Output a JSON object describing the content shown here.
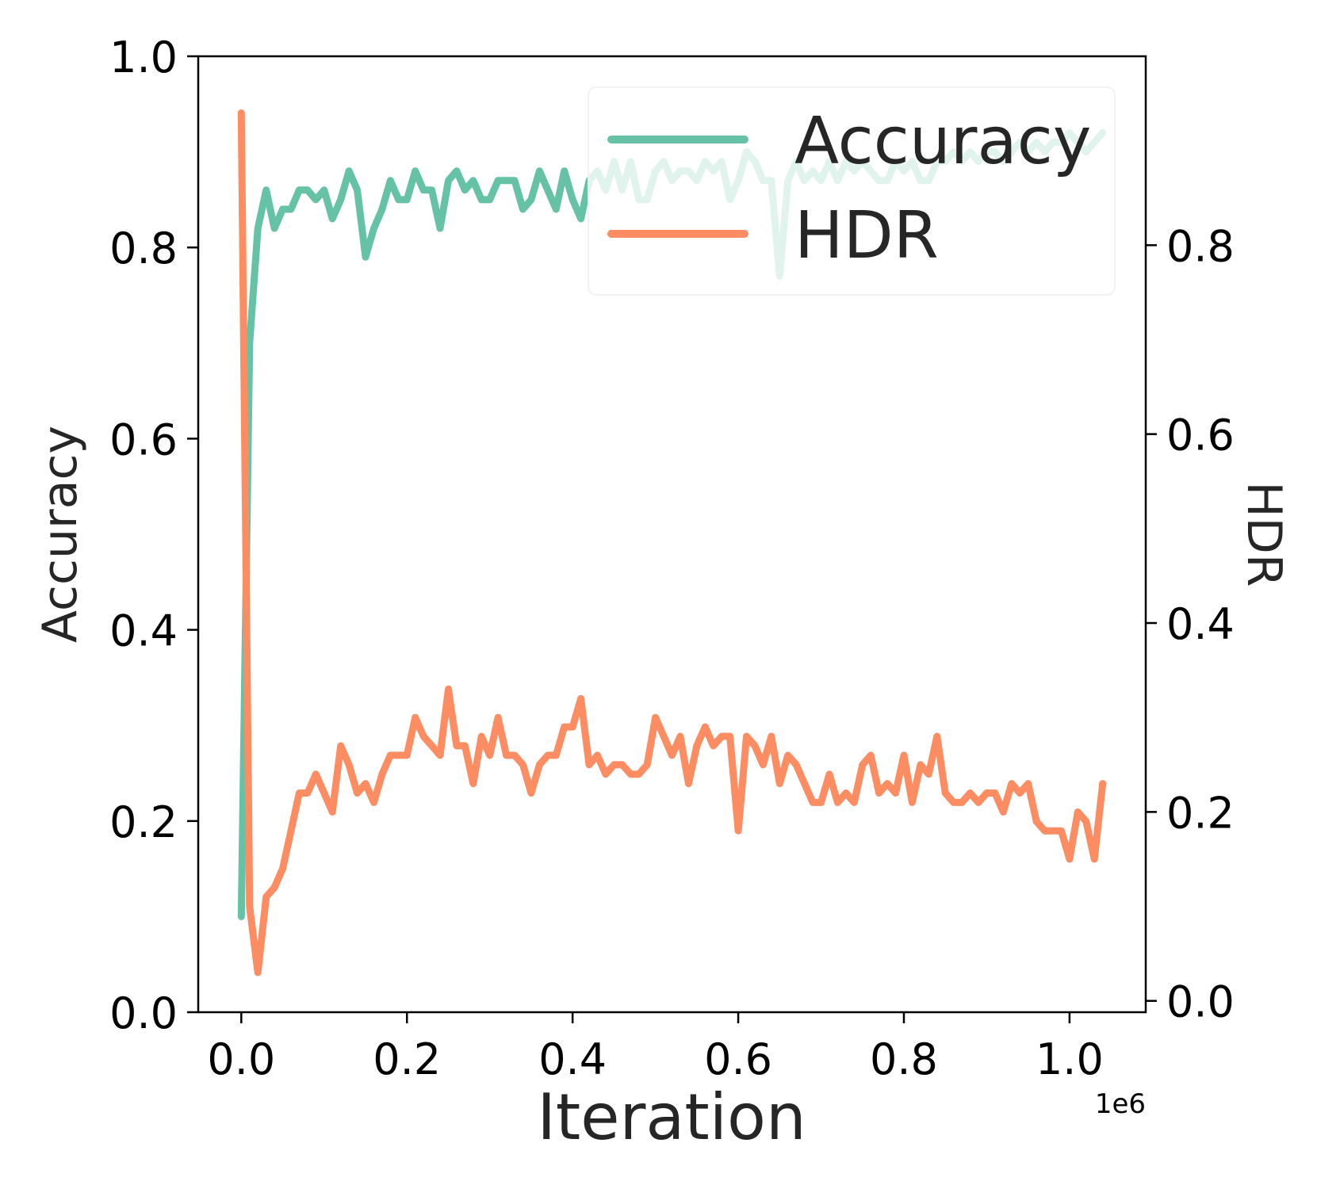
{
  "chart_data": {
    "type": "line",
    "xlabel": "Iteration",
    "ylabel_left": "Accuracy",
    "ylabel_right": "HDR",
    "x_offset_label": "1e6",
    "xlim": [
      -0.052,
      1.092
    ],
    "ylim_left": [
      0.0,
      1.0
    ],
    "ylim_right": [
      -0.012,
      1.0
    ],
    "x_ticks": [
      "0.0",
      "0.2",
      "0.4",
      "0.6",
      "0.8",
      "1.0"
    ],
    "y_left_ticks": [
      "0.0",
      "0.2",
      "0.4",
      "0.6",
      "0.8",
      "1.0"
    ],
    "y_right_ticks": [
      "0.0",
      "0.2",
      "0.4",
      "0.6",
      "0.8"
    ],
    "legend_position": "top-right",
    "grid": false,
    "colors": {
      "accuracy": "#66c2a5",
      "hdr": "#fc8d62",
      "axes": "#000000",
      "text": "#262626"
    },
    "series": [
      {
        "name": "Accuracy",
        "axis": "left",
        "x": [
          0.0,
          0.01,
          0.02,
          0.03,
          0.04,
          0.05,
          0.06,
          0.07,
          0.08,
          0.09,
          0.1,
          0.11,
          0.12,
          0.13,
          0.14,
          0.15,
          0.16,
          0.17,
          0.18,
          0.19,
          0.2,
          0.21,
          0.22,
          0.23,
          0.24,
          0.25,
          0.26,
          0.27,
          0.28,
          0.29,
          0.3,
          0.31,
          0.32,
          0.33,
          0.34,
          0.35,
          0.36,
          0.37,
          0.38,
          0.39,
          0.4,
          0.41,
          0.42,
          0.43,
          0.44,
          0.45,
          0.46,
          0.47,
          0.48,
          0.49,
          0.5,
          0.51,
          0.52,
          0.53,
          0.54,
          0.55,
          0.56,
          0.57,
          0.58,
          0.59,
          0.6,
          0.61,
          0.62,
          0.63,
          0.64,
          0.65,
          0.66,
          0.67,
          0.68,
          0.69,
          0.7,
          0.71,
          0.72,
          0.73,
          0.74,
          0.75,
          0.76,
          0.77,
          0.78,
          0.79,
          0.8,
          0.81,
          0.82,
          0.83,
          0.84,
          0.85,
          0.86,
          0.87,
          0.88,
          0.89,
          0.9,
          0.91,
          0.92,
          0.93,
          0.94,
          0.95,
          0.96,
          0.97,
          0.98,
          0.99,
          1.0,
          1.01,
          1.02,
          1.03,
          1.04
        ],
        "values": [
          0.1,
          0.7,
          0.82,
          0.86,
          0.82,
          0.84,
          0.84,
          0.86,
          0.86,
          0.85,
          0.86,
          0.83,
          0.85,
          0.88,
          0.86,
          0.79,
          0.82,
          0.84,
          0.87,
          0.85,
          0.85,
          0.88,
          0.86,
          0.86,
          0.82,
          0.87,
          0.88,
          0.86,
          0.87,
          0.85,
          0.85,
          0.87,
          0.87,
          0.87,
          0.84,
          0.85,
          0.88,
          0.86,
          0.84,
          0.88,
          0.85,
          0.83,
          0.87,
          0.88,
          0.86,
          0.89,
          0.86,
          0.89,
          0.85,
          0.85,
          0.88,
          0.89,
          0.87,
          0.88,
          0.88,
          0.87,
          0.89,
          0.88,
          0.89,
          0.85,
          0.87,
          0.9,
          0.89,
          0.87,
          0.87,
          0.77,
          0.87,
          0.89,
          0.87,
          0.88,
          0.87,
          0.89,
          0.87,
          0.89,
          0.88,
          0.89,
          0.88,
          0.87,
          0.87,
          0.89,
          0.88,
          0.89,
          0.87,
          0.87,
          0.89,
          0.89,
          0.9,
          0.89,
          0.9,
          0.89,
          0.9,
          0.9,
          0.89,
          0.9,
          0.91,
          0.9,
          0.91,
          0.9,
          0.91,
          0.91,
          0.92,
          0.91,
          0.9,
          0.91,
          0.92
        ]
      },
      {
        "name": "HDR",
        "axis": "right",
        "x": [
          0.0,
          0.01,
          0.02,
          0.03,
          0.04,
          0.05,
          0.06,
          0.07,
          0.08,
          0.09,
          0.1,
          0.11,
          0.12,
          0.13,
          0.14,
          0.15,
          0.16,
          0.17,
          0.18,
          0.19,
          0.2,
          0.21,
          0.22,
          0.23,
          0.24,
          0.25,
          0.26,
          0.27,
          0.28,
          0.29,
          0.3,
          0.31,
          0.32,
          0.33,
          0.34,
          0.35,
          0.36,
          0.37,
          0.38,
          0.39,
          0.4,
          0.41,
          0.42,
          0.43,
          0.44,
          0.45,
          0.46,
          0.47,
          0.48,
          0.49,
          0.5,
          0.51,
          0.52,
          0.53,
          0.54,
          0.55,
          0.56,
          0.57,
          0.58,
          0.59,
          0.6,
          0.61,
          0.62,
          0.63,
          0.64,
          0.65,
          0.66,
          0.67,
          0.68,
          0.69,
          0.7,
          0.71,
          0.72,
          0.73,
          0.74,
          0.75,
          0.76,
          0.77,
          0.78,
          0.79,
          0.8,
          0.81,
          0.82,
          0.83,
          0.84,
          0.85,
          0.86,
          0.87,
          0.88,
          0.89,
          0.9,
          0.91,
          0.92,
          0.93,
          0.94,
          0.95,
          0.96,
          0.97,
          0.98,
          0.99,
          1.0,
          1.01,
          1.02,
          1.03,
          1.04
        ],
        "values": [
          0.94,
          0.1,
          0.03,
          0.11,
          0.12,
          0.14,
          0.18,
          0.22,
          0.22,
          0.24,
          0.22,
          0.2,
          0.27,
          0.25,
          0.22,
          0.23,
          0.21,
          0.24,
          0.26,
          0.26,
          0.26,
          0.3,
          0.28,
          0.27,
          0.26,
          0.33,
          0.27,
          0.27,
          0.23,
          0.28,
          0.26,
          0.3,
          0.26,
          0.26,
          0.25,
          0.22,
          0.25,
          0.26,
          0.26,
          0.29,
          0.29,
          0.32,
          0.25,
          0.26,
          0.24,
          0.25,
          0.25,
          0.24,
          0.24,
          0.25,
          0.3,
          0.28,
          0.26,
          0.28,
          0.23,
          0.27,
          0.29,
          0.27,
          0.28,
          0.28,
          0.18,
          0.28,
          0.27,
          0.25,
          0.28,
          0.23,
          0.26,
          0.25,
          0.23,
          0.21,
          0.21,
          0.24,
          0.21,
          0.22,
          0.21,
          0.25,
          0.26,
          0.22,
          0.23,
          0.22,
          0.26,
          0.21,
          0.25,
          0.24,
          0.28,
          0.22,
          0.21,
          0.21,
          0.22,
          0.21,
          0.22,
          0.22,
          0.2,
          0.23,
          0.22,
          0.23,
          0.19,
          0.18,
          0.18,
          0.18,
          0.15,
          0.2,
          0.19,
          0.15,
          0.23
        ]
      }
    ]
  }
}
